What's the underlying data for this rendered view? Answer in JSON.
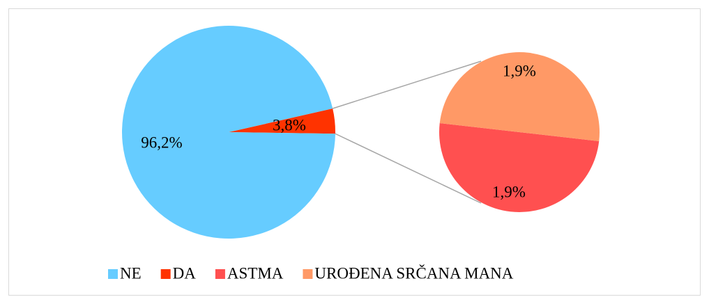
{
  "chart_data": {
    "type": "pie",
    "categories": [
      "NE",
      "DA"
    ],
    "values": [
      96.2,
      3.8
    ],
    "value_labels": [
      "96,2%",
      "3,8%"
    ],
    "colors": [
      "#66ccff",
      "#ff3300"
    ],
    "secondary": {
      "categories": [
        "ASTMA",
        "UROĐENA SRČANA MANA"
      ],
      "values": [
        1.9,
        1.9
      ],
      "value_labels": [
        "1,9%",
        "1,9%"
      ],
      "colors": [
        "#ff5050",
        "#ff9966"
      ]
    },
    "legend": "bottom"
  }
}
